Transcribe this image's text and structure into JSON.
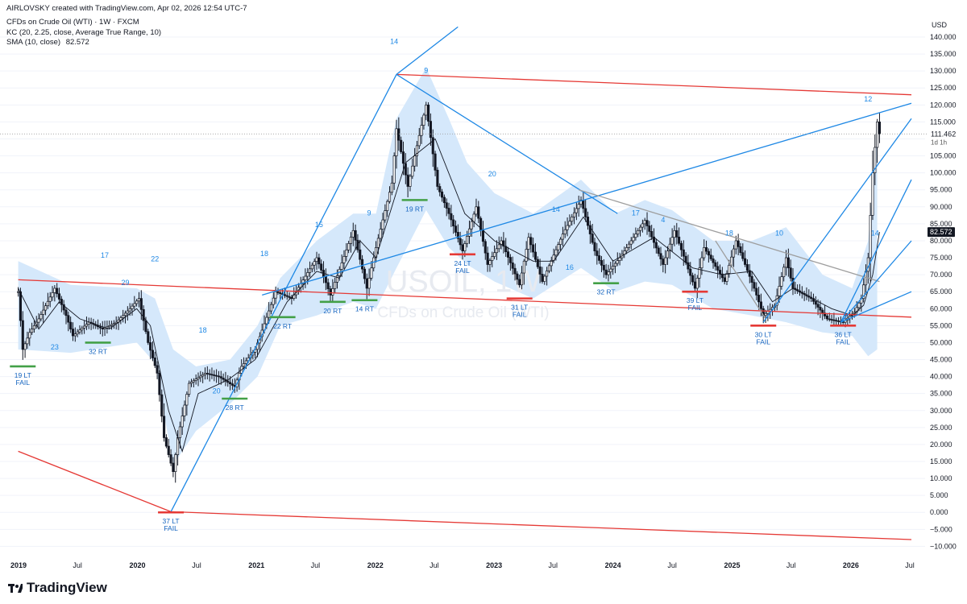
{
  "header": {
    "credit": "AIRLOVSKY created with TradingView.com, Apr 02, 2026 12:54 UTC-7",
    "symbol": "CFDs on Crude Oil (WTI) · 1W · FXCM",
    "indicator_kc": "KC (20, 2.25, close, Average True Range, 10)",
    "indicator_sma_label": "SMA (10, close)",
    "indicator_sma_value": "82.572"
  },
  "watermark": {
    "symbol": "USOIL, 1W",
    "name": "CFDs on Crude Oil (WTI)"
  },
  "branding": {
    "logo": "TradingView",
    "logo_icon": "tradingview-logo-icon"
  },
  "chart_data": {
    "type": "candlestick",
    "currency_label": "USD",
    "timeframe": "1W",
    "ylim": [
      -10,
      145
    ],
    "y_ticks": [
      "140.000",
      "135.000",
      "130.000",
      "125.000",
      "120.000",
      "115.000",
      "110.000",
      "105.000",
      "100.000",
      "95.000",
      "90.000",
      "85.000",
      "80.000",
      "75.000",
      "70.000",
      "65.000",
      "60.000",
      "55.000",
      "50.000",
      "45.000",
      "40.000",
      "35.000",
      "30.000",
      "25.000",
      "20.000",
      "15.000",
      "10.000",
      "5.000",
      "0.000",
      "−5.000",
      "−10.000"
    ],
    "x_ticks": [
      "2019",
      "Jul",
      "2020",
      "Jul",
      "2021",
      "Jul",
      "2022",
      "Jul",
      "2023",
      "Jul",
      "2024",
      "Jul",
      "2025",
      "Jul",
      "2026",
      "Jul"
    ],
    "last_price": {
      "value": 111.462,
      "label": "111.462",
      "sublabel": "1d 1h"
    },
    "sma_price": {
      "value": 82.572,
      "label": "82.572"
    },
    "price_path": [
      [
        "2018-12-31",
        65
      ],
      [
        "2019-01-14",
        48
      ],
      [
        "2019-02-04",
        53
      ],
      [
        "2019-03-04",
        57
      ],
      [
        "2019-04-22",
        66
      ],
      [
        "2019-05-27",
        58
      ],
      [
        "2019-06-17",
        52
      ],
      [
        "2019-08-05",
        56
      ],
      [
        "2019-09-16",
        54
      ],
      [
        "2019-10-28",
        56
      ],
      [
        "2019-12-09",
        60
      ],
      [
        "2020-01-06",
        63
      ],
      [
        "2020-02-03",
        50
      ],
      [
        "2020-03-02",
        41
      ],
      [
        "2020-03-23",
        22
      ],
      [
        "2020-04-20",
        12
      ],
      [
        "2020-05-04",
        22
      ],
      [
        "2020-06-08",
        38
      ],
      [
        "2020-07-27",
        41
      ],
      [
        "2020-09-07",
        40
      ],
      [
        "2020-10-26",
        37
      ],
      [
        "2020-11-16",
        43
      ],
      [
        "2020-12-28",
        48
      ],
      [
        "2021-03-01",
        65
      ],
      [
        "2021-04-19",
        63
      ],
      [
        "2021-07-05",
        75
      ],
      [
        "2021-08-16",
        64
      ],
      [
        "2021-10-25",
        83
      ],
      [
        "2021-12-06",
        66
      ],
      [
        "2022-01-03",
        78
      ],
      [
        "2022-02-21",
        97
      ],
      [
        "2022-03-07",
        113
      ],
      [
        "2022-04-11",
        96
      ],
      [
        "2022-06-06",
        120
      ],
      [
        "2022-07-11",
        96
      ],
      [
        "2022-08-15",
        88
      ],
      [
        "2022-09-26",
        77
      ],
      [
        "2022-11-07",
        90
      ],
      [
        "2022-12-12",
        73
      ],
      [
        "2023-01-23",
        80
      ],
      [
        "2023-03-20",
        67
      ],
      [
        "2023-04-17",
        81
      ],
      [
        "2023-05-29",
        68
      ],
      [
        "2023-07-31",
        82
      ],
      [
        "2023-09-25",
        92
      ],
      [
        "2023-11-06",
        77
      ],
      [
        "2023-12-11",
        70
      ],
      [
        "2024-01-22",
        75
      ],
      [
        "2024-04-08",
        86
      ],
      [
        "2024-06-03",
        73
      ],
      [
        "2024-07-08",
        83
      ],
      [
        "2024-09-09",
        66
      ],
      [
        "2024-10-07",
        78
      ],
      [
        "2024-12-09",
        68
      ],
      [
        "2025-01-13",
        80
      ],
      [
        "2025-03-10",
        66
      ],
      [
        "2025-04-07",
        58
      ],
      [
        "2025-05-12",
        61
      ],
      [
        "2025-06-16",
        75
      ],
      [
        "2025-07-07",
        66
      ],
      [
        "2025-09-01",
        63
      ],
      [
        "2025-10-20",
        57
      ],
      [
        "2025-12-08",
        56
      ],
      [
        "2026-01-12",
        59
      ],
      [
        "2026-02-02",
        63
      ],
      [
        "2026-02-23",
        75
      ],
      [
        "2026-03-09",
        100
      ],
      [
        "2026-03-23",
        115
      ],
      [
        "2026-03-30",
        111.462
      ]
    ],
    "keltner_band": {
      "upper": [
        [
          "2018-12-31",
          74
        ],
        [
          "2019-06-10",
          67
        ],
        [
          "2019-12-30",
          66
        ],
        [
          "2020-02-24",
          63
        ],
        [
          "2020-04-20",
          48
        ],
        [
          "2020-06-29",
          43
        ],
        [
          "2020-10-12",
          45
        ],
        [
          "2021-01-04",
          55
        ],
        [
          "2021-03-15",
          69
        ],
        [
          "2021-07-05",
          80
        ],
        [
          "2021-10-25",
          88
        ],
        [
          "2022-01-03",
          88
        ],
        [
          "2022-03-07",
          116
        ],
        [
          "2022-06-06",
          131
        ],
        [
          "2022-08-15",
          116
        ],
        [
          "2022-10-10",
          103
        ],
        [
          "2023-01-02",
          94
        ],
        [
          "2023-05-01",
          88
        ],
        [
          "2023-09-25",
          98
        ],
        [
          "2024-01-08",
          88
        ],
        [
          "2024-04-08",
          92
        ],
        [
          "2024-07-01",
          89
        ],
        [
          "2024-11-04",
          80
        ],
        [
          "2025-03-03",
          80
        ],
        [
          "2025-06-16",
          84
        ],
        [
          "2025-10-06",
          70
        ],
        [
          "2026-01-05",
          66
        ],
        [
          "2026-02-23",
          80
        ],
        [
          "2026-03-23",
          112
        ]
      ],
      "lower": [
        [
          "2018-12-31",
          48
        ],
        [
          "2019-06-10",
          47
        ],
        [
          "2019-12-30",
          50
        ],
        [
          "2020-02-24",
          44
        ],
        [
          "2020-04-20",
          14
        ],
        [
          "2020-06-29",
          24
        ],
        [
          "2020-10-12",
          32
        ],
        [
          "2021-01-04",
          40
        ],
        [
          "2021-03-15",
          55
        ],
        [
          "2021-07-05",
          58
        ],
        [
          "2021-10-25",
          62
        ],
        [
          "2022-01-03",
          60
        ],
        [
          "2022-03-07",
          72
        ],
        [
          "2022-06-06",
          89
        ],
        [
          "2022-08-15",
          78
        ],
        [
          "2022-10-10",
          73
        ],
        [
          "2023-01-02",
          68
        ],
        [
          "2023-05-01",
          63
        ],
        [
          "2023-09-25",
          72
        ],
        [
          "2024-01-08",
          65
        ],
        [
          "2024-04-08",
          68
        ],
        [
          "2024-07-01",
          67
        ],
        [
          "2024-11-04",
          60
        ],
        [
          "2025-03-03",
          58
        ],
        [
          "2025-06-16",
          56
        ],
        [
          "2025-10-06",
          53
        ],
        [
          "2026-01-05",
          52
        ],
        [
          "2026-02-23",
          46
        ],
        [
          "2026-03-23",
          48
        ]
      ]
    },
    "sma_line": [
      [
        "2018-12-31",
        66
      ],
      [
        "2019-03-04",
        54
      ],
      [
        "2019-05-06",
        62
      ],
      [
        "2019-07-08",
        57
      ],
      [
        "2019-10-07",
        54
      ],
      [
        "2019-12-30",
        60
      ],
      [
        "2020-02-10",
        55
      ],
      [
        "2020-04-06",
        30
      ],
      [
        "2020-05-18",
        18
      ],
      [
        "2020-07-06",
        35
      ],
      [
        "2020-10-05",
        39
      ],
      [
        "2020-12-28",
        45
      ],
      [
        "2021-04-05",
        62
      ],
      [
        "2021-07-05",
        71
      ],
      [
        "2021-09-13",
        69
      ],
      [
        "2021-11-15",
        80
      ],
      [
        "2022-01-03",
        75
      ],
      [
        "2022-04-04",
        103
      ],
      [
        "2022-07-04",
        110
      ],
      [
        "2022-10-03",
        88
      ],
      [
        "2023-01-02",
        80
      ],
      [
        "2023-05-01",
        74
      ],
      [
        "2023-07-03",
        74
      ],
      [
        "2023-10-02",
        87
      ],
      [
        "2024-01-01",
        74
      ],
      [
        "2024-05-06",
        81
      ],
      [
        "2024-09-02",
        72
      ],
      [
        "2024-12-02",
        70
      ],
      [
        "2025-03-03",
        71
      ],
      [
        "2025-05-05",
        62
      ],
      [
        "2025-07-07",
        66
      ],
      [
        "2025-11-03",
        60
      ],
      [
        "2026-01-05",
        58
      ],
      [
        "2026-02-09",
        61
      ],
      [
        "2026-03-09",
        70
      ],
      [
        "2026-03-30",
        82.572
      ]
    ],
    "trend_lines": [
      {
        "name": "upper channel",
        "color": "#e53935",
        "points": [
          [
            "2022-03-07",
            129
          ],
          [
            "2026-07-06",
            123
          ]
        ]
      },
      {
        "name": "middle channel",
        "color": "#e53935",
        "points": [
          [
            "2018-12-31",
            68.5
          ],
          [
            "2026-07-06",
            57.5
          ]
        ]
      },
      {
        "name": "lower channel",
        "color": "#e53935",
        "points": [
          [
            "2018-12-31",
            18
          ],
          [
            "2020-04-13",
            0.2
          ],
          [
            "2026-07-06",
            -8
          ]
        ]
      },
      {
        "name": "rally line",
        "color": "#1e88e5",
        "points": [
          [
            "2020-04-13",
            0.2
          ],
          [
            "2022-03-07",
            129
          ],
          [
            "2022-09-12",
            143
          ]
        ]
      },
      {
        "name": "rising support",
        "color": "#1e88e5",
        "points": [
          [
            "2021-01-18",
            64
          ],
          [
            "2026-07-06",
            120.5
          ]
        ]
      },
      {
        "name": "falling line",
        "color": "#1e88e5",
        "points": [
          [
            "2022-03-07",
            129
          ],
          [
            "2024-01-15",
            88
          ]
        ]
      },
      {
        "name": "gray wedge top",
        "color": "#9e9e9e",
        "points": [
          [
            "2023-09-18",
            95
          ],
          [
            "2026-03-30",
            68
          ]
        ]
      },
      {
        "name": "gray wedge bottom",
        "color": "#9e9e9e",
        "points": [
          [
            "2024-11-11",
            80
          ],
          [
            "2025-04-14",
            57
          ]
        ]
      },
      {
        "name": "fan 1",
        "color": "#1e88e5",
        "points": [
          [
            "2025-04-07",
            56
          ],
          [
            "2026-07-06",
            116
          ]
        ]
      },
      {
        "name": "fan 2",
        "color": "#1e88e5",
        "points": [
          [
            "2025-12-01",
            56
          ],
          [
            "2026-07-06",
            98
          ]
        ]
      },
      {
        "name": "fan 3",
        "color": "#1e88e5",
        "points": [
          [
            "2025-12-01",
            56
          ],
          [
            "2026-07-06",
            80
          ]
        ]
      },
      {
        "name": "fan 4",
        "color": "#1e88e5",
        "points": [
          [
            "2025-12-01",
            56
          ],
          [
            "2026-07-06",
            65
          ]
        ]
      }
    ],
    "cycle_markers": [
      {
        "kind": "green",
        "date": "2019-01-14",
        "price": 43,
        "labels": [
          "19 LT",
          "FAIL"
        ]
      },
      {
        "kind": "green",
        "date": "2019-09-02",
        "price": 50,
        "labels": [
          "32 RT"
        ]
      },
      {
        "kind": "red",
        "date": "2020-04-13",
        "price": 0,
        "labels": [
          "37 LT",
          "FAIL"
        ]
      },
      {
        "kind": "green",
        "date": "2020-10-26",
        "price": 33.5,
        "labels": [
          "28 RT"
        ]
      },
      {
        "kind": "green",
        "date": "2021-03-22",
        "price": 57.5,
        "labels": [
          "22 RT"
        ]
      },
      {
        "kind": "green",
        "date": "2021-08-23",
        "price": 62,
        "labels": [
          "20 RT"
        ]
      },
      {
        "kind": "green",
        "date": "2021-11-29",
        "price": 62.5,
        "labels": [
          "14 RT"
        ]
      },
      {
        "kind": "green",
        "date": "2022-05-02",
        "price": 92,
        "labels": [
          "19 RT"
        ]
      },
      {
        "kind": "red",
        "date": "2022-09-26",
        "price": 76,
        "labels": [
          "24 LT",
          "FAIL"
        ]
      },
      {
        "kind": "red",
        "date": "2023-03-20",
        "price": 63,
        "labels": [
          "31 LT",
          "FAIL"
        ]
      },
      {
        "kind": "green",
        "date": "2023-12-11",
        "price": 67.5,
        "labels": [
          "32 RT"
        ]
      },
      {
        "kind": "red",
        "date": "2024-09-09",
        "price": 65,
        "labels": [
          "39 LT",
          "FAIL"
        ]
      },
      {
        "kind": "red",
        "date": "2025-04-07",
        "price": 55,
        "labels": [
          "30 LT",
          "FAIL"
        ]
      },
      {
        "kind": "red",
        "date": "2025-12-08",
        "price": 55,
        "labels": [
          "36 LT",
          "FAIL"
        ]
      }
    ],
    "cycle_counts": [
      {
        "text": "17",
        "date": "2019-09-23",
        "price": 75
      },
      {
        "text": "29",
        "date": "2019-11-25",
        "price": 67
      },
      {
        "text": "23",
        "date": "2019-04-22",
        "price": 48
      },
      {
        "text": "22",
        "date": "2020-02-24",
        "price": 74
      },
      {
        "text": "18",
        "date": "2020-07-20",
        "price": 53
      },
      {
        "text": "20",
        "date": "2020-08-31",
        "price": 35
      },
      {
        "text": "18",
        "date": "2021-01-25",
        "price": 75.5
      },
      {
        "text": "15",
        "date": "2021-07-12",
        "price": 84
      },
      {
        "text": "9",
        "date": "2021-12-13",
        "price": 87.5
      },
      {
        "text": "14",
        "date": "2022-02-28",
        "price": 138
      },
      {
        "text": "9",
        "date": "2022-06-06",
        "price": 129.5
      },
      {
        "text": "20",
        "date": "2022-12-26",
        "price": 99
      },
      {
        "text": "14",
        "date": "2023-07-10",
        "price": 88.5
      },
      {
        "text": "16",
        "date": "2023-08-21",
        "price": 71.5
      },
      {
        "text": "17",
        "date": "2024-03-11",
        "price": 87.5
      },
      {
        "text": "4",
        "date": "2024-06-03",
        "price": 85.5
      },
      {
        "text": "18",
        "date": "2024-12-23",
        "price": 81.5
      },
      {
        "text": "10",
        "date": "2025-05-26",
        "price": 81.5
      },
      {
        "text": "12",
        "date": "2026-02-23",
        "price": 121
      },
      {
        "text": "14",
        "date": "2026-03-16",
        "price": 81.5
      }
    ],
    "colors": {
      "up": "#ffffff",
      "down": "#131722",
      "band_fill": "#d5e8fb",
      "sma": "#131722",
      "blue": "#1e88e5",
      "red": "#e53935",
      "green": "#43a047",
      "gray": "#9e9e9e",
      "grid": "#f0f3fa"
    }
  }
}
